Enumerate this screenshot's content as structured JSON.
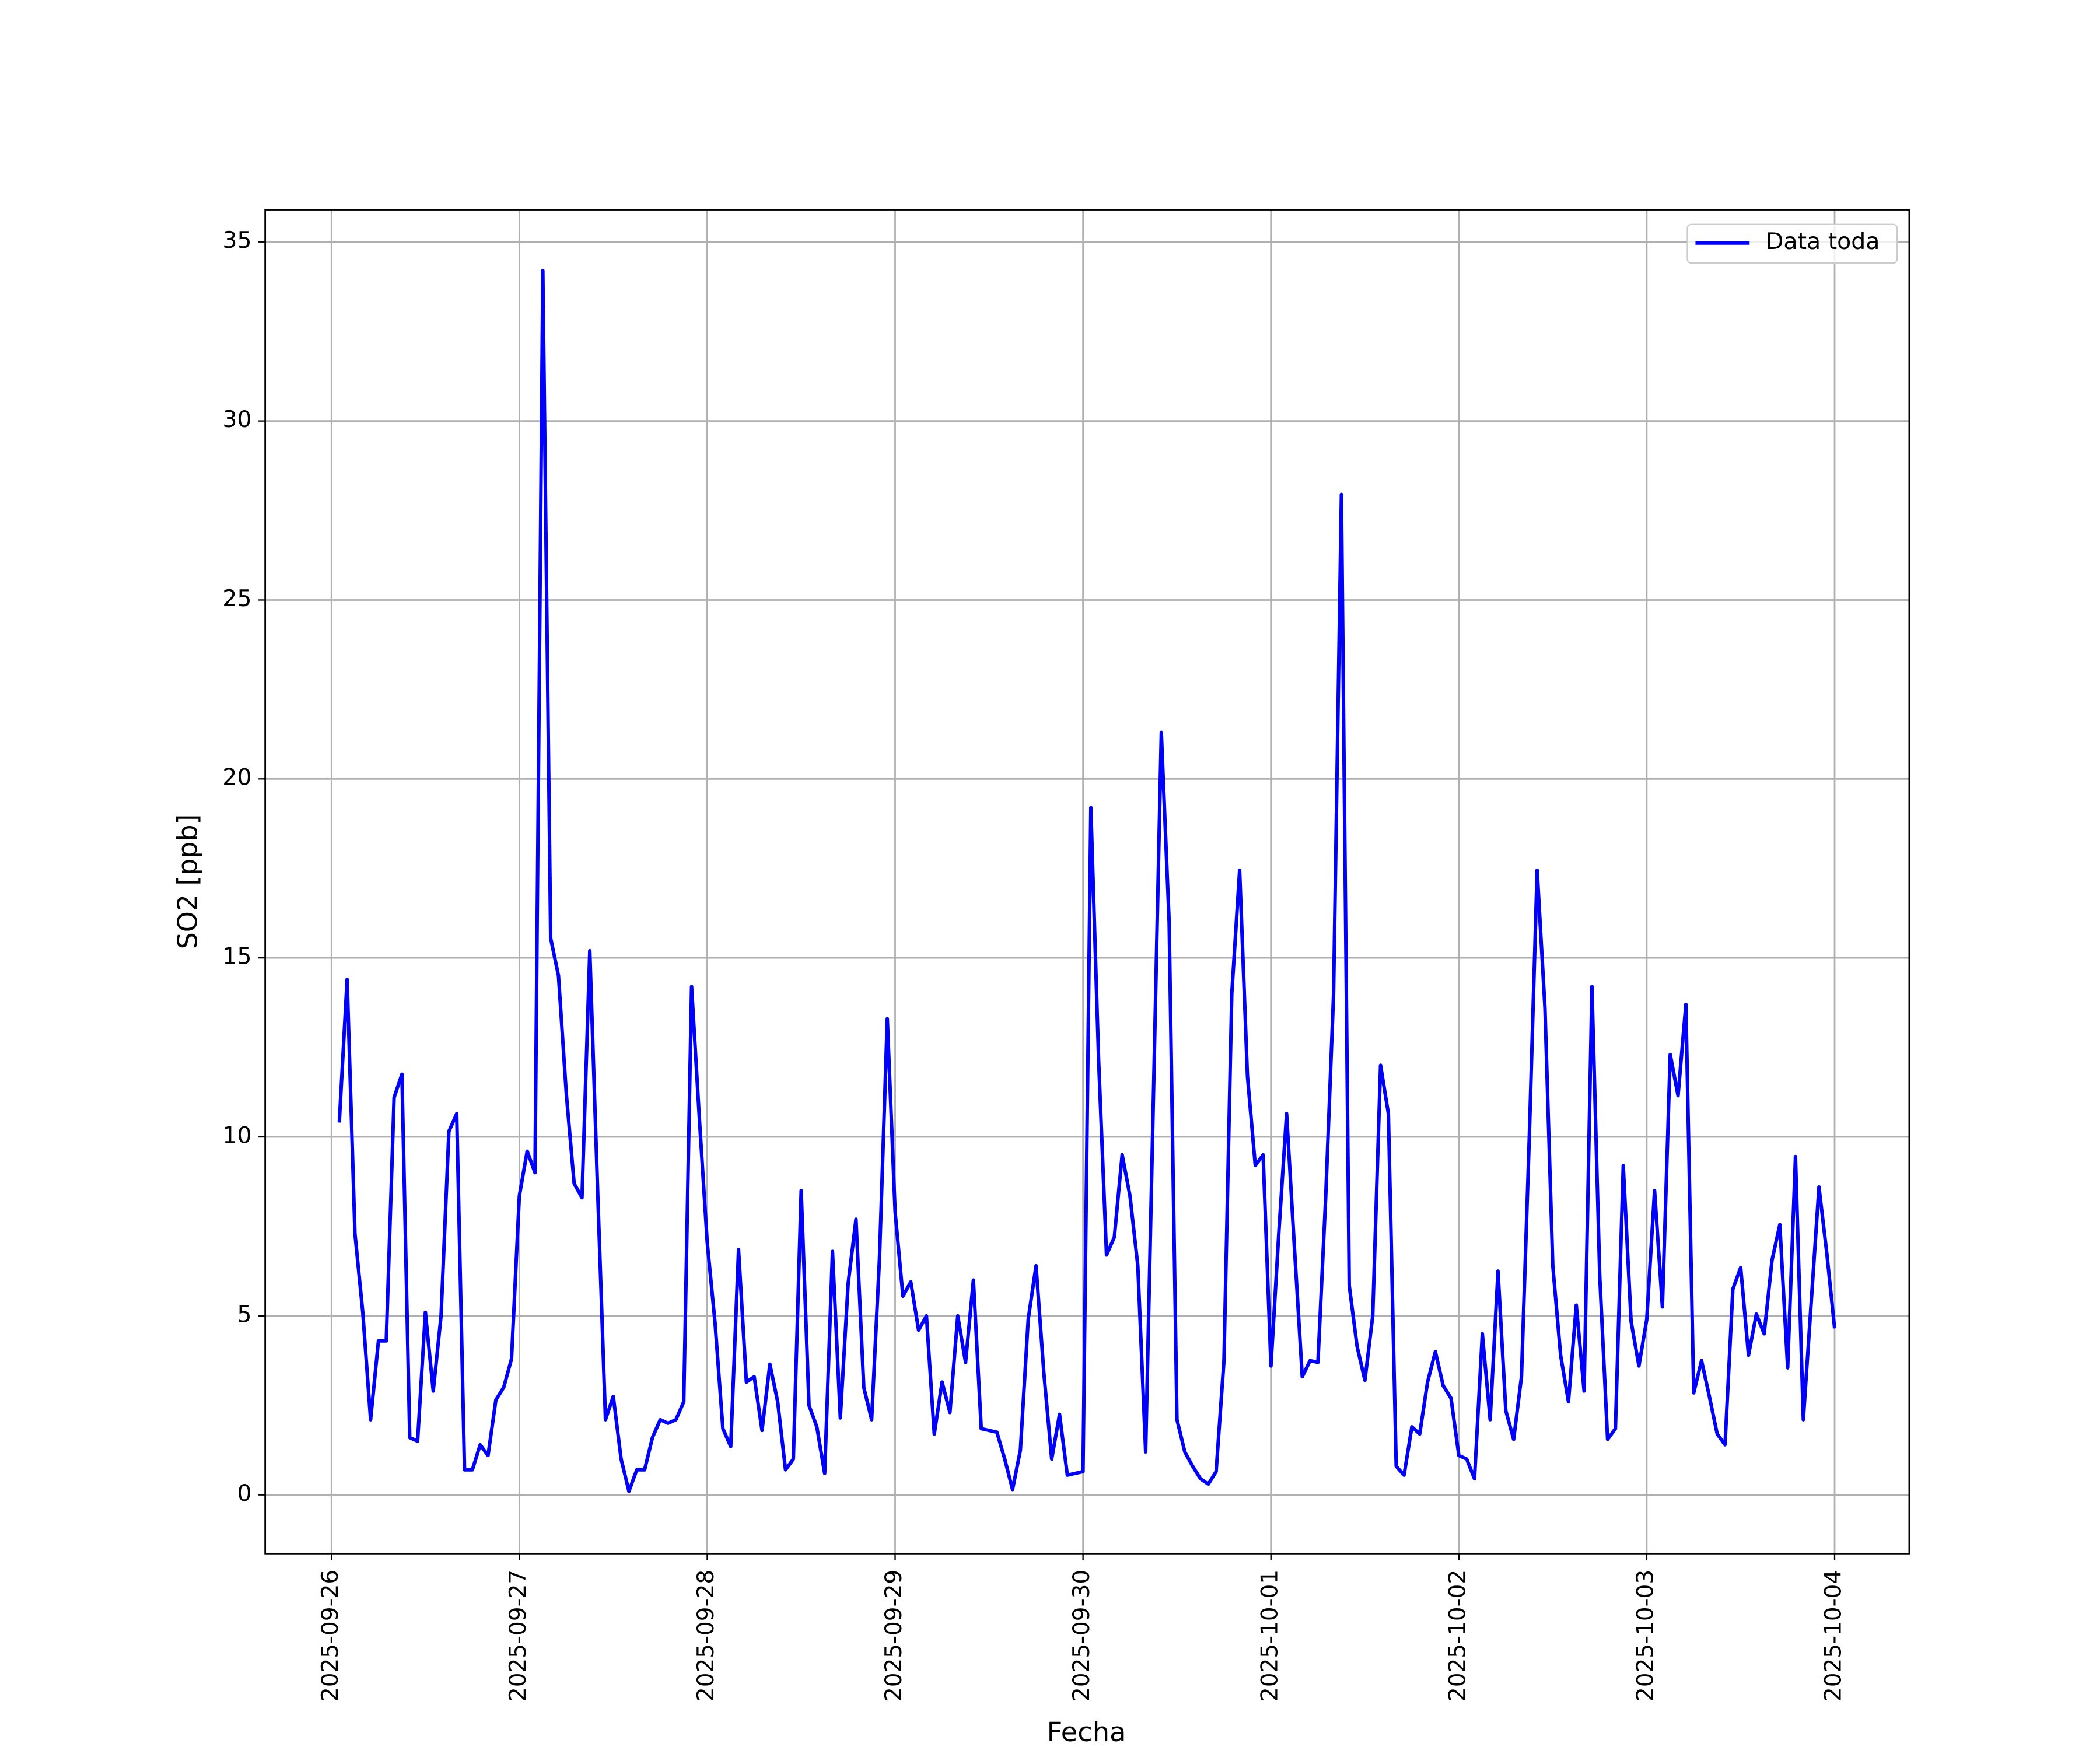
{
  "chart_data": {
    "type": "line",
    "xlabel": "Fecha",
    "ylabel": "SO2 [ppb]",
    "x": [
      "2025-09-26 01:00",
      "2025-09-26 02:00",
      "2025-09-26 03:00",
      "2025-09-26 04:00",
      "2025-09-26 05:00",
      "2025-09-26 06:00",
      "2025-09-26 07:00",
      "2025-09-26 08:00",
      "2025-09-26 09:00",
      "2025-09-26 10:00",
      "2025-09-26 11:00",
      "2025-09-26 12:00",
      "2025-09-26 13:00",
      "2025-09-26 14:00",
      "2025-09-26 15:00",
      "2025-09-26 16:00",
      "2025-09-26 17:00",
      "2025-09-26 18:00",
      "2025-09-26 19:00",
      "2025-09-26 20:00",
      "2025-09-26 21:00",
      "2025-09-26 22:00",
      "2025-09-26 23:00",
      "2025-09-27 00:00",
      "2025-09-27 01:00",
      "2025-09-27 02:00",
      "2025-09-27 03:00",
      "2025-09-27 04:00",
      "2025-09-27 05:00",
      "2025-09-27 06:00",
      "2025-09-27 07:00",
      "2025-09-27 08:00",
      "2025-09-27 09:00",
      "2025-09-27 10:00",
      "2025-09-27 11:00",
      "2025-09-27 12:00",
      "2025-09-27 13:00",
      "2025-09-27 14:00",
      "2025-09-27 15:00",
      "2025-09-27 16:00",
      "2025-09-27 17:00",
      "2025-09-27 18:00",
      "2025-09-27 19:00",
      "2025-09-27 20:00",
      "2025-09-27 21:00",
      "2025-09-27 22:00",
      "2025-09-27 23:00",
      "2025-09-28 00:00",
      "2025-09-28 01:00",
      "2025-09-28 02:00",
      "2025-09-28 03:00",
      "2025-09-28 04:00",
      "2025-09-28 05:00",
      "2025-09-28 06:00",
      "2025-09-28 07:00",
      "2025-09-28 08:00",
      "2025-09-28 09:00",
      "2025-09-28 10:00",
      "2025-09-28 11:00",
      "2025-09-28 12:00",
      "2025-09-28 13:00",
      "2025-09-28 14:00",
      "2025-09-28 15:00",
      "2025-09-28 16:00",
      "2025-09-28 17:00",
      "2025-09-28 18:00",
      "2025-09-28 19:00",
      "2025-09-28 20:00",
      "2025-09-28 21:00",
      "2025-09-28 22:00",
      "2025-09-28 23:00",
      "2025-09-29 00:00",
      "2025-09-29 01:00",
      "2025-09-29 02:00",
      "2025-09-29 03:00",
      "2025-09-29 04:00",
      "2025-09-29 05:00",
      "2025-09-29 06:00",
      "2025-09-29 07:00",
      "2025-09-29 08:00",
      "2025-09-29 09:00",
      "2025-09-29 10:00",
      "2025-09-29 11:00",
      "2025-09-29 12:00",
      "2025-09-29 13:00",
      "2025-09-29 14:00",
      "2025-09-29 15:00",
      "2025-09-29 16:00",
      "2025-09-29 17:00",
      "2025-09-29 18:00",
      "2025-09-29 19:00",
      "2025-09-29 20:00",
      "2025-09-29 21:00",
      "2025-09-29 22:00",
      "2025-09-29 23:00",
      "2025-09-30 00:00",
      "2025-09-30 01:00",
      "2025-09-30 02:00",
      "2025-09-30 03:00",
      "2025-09-30 04:00",
      "2025-09-30 05:00",
      "2025-09-30 06:00",
      "2025-09-30 07:00",
      "2025-09-30 08:00",
      "2025-09-30 09:00",
      "2025-09-30 10:00",
      "2025-09-30 11:00",
      "2025-09-30 12:00",
      "2025-09-30 13:00",
      "2025-09-30 14:00",
      "2025-09-30 15:00",
      "2025-09-30 16:00",
      "2025-09-30 17:00",
      "2025-09-30 18:00",
      "2025-09-30 19:00",
      "2025-09-30 20:00",
      "2025-09-30 21:00",
      "2025-09-30 22:00",
      "2025-09-30 23:00",
      "2025-10-01 00:00",
      "2025-10-01 01:00",
      "2025-10-01 02:00",
      "2025-10-01 03:00",
      "2025-10-01 04:00",
      "2025-10-01 05:00",
      "2025-10-01 06:00",
      "2025-10-01 07:00",
      "2025-10-01 08:00",
      "2025-10-01 09:00",
      "2025-10-01 10:00",
      "2025-10-01 11:00",
      "2025-10-01 12:00",
      "2025-10-01 13:00",
      "2025-10-01 14:00",
      "2025-10-01 15:00",
      "2025-10-01 16:00",
      "2025-10-01 17:00",
      "2025-10-01 18:00",
      "2025-10-01 19:00",
      "2025-10-01 20:00",
      "2025-10-01 21:00",
      "2025-10-01 22:00",
      "2025-10-01 23:00",
      "2025-10-02 00:00",
      "2025-10-02 01:00",
      "2025-10-02 02:00",
      "2025-10-02 03:00",
      "2025-10-02 04:00",
      "2025-10-02 05:00",
      "2025-10-02 06:00",
      "2025-10-02 07:00",
      "2025-10-02 08:00",
      "2025-10-02 09:00",
      "2025-10-02 10:00",
      "2025-10-02 11:00",
      "2025-10-02 12:00",
      "2025-10-02 13:00",
      "2025-10-02 14:00",
      "2025-10-02 15:00",
      "2025-10-02 16:00",
      "2025-10-02 17:00",
      "2025-10-02 18:00",
      "2025-10-02 19:00",
      "2025-10-02 20:00",
      "2025-10-02 21:00",
      "2025-10-02 22:00",
      "2025-10-02 23:00",
      "2025-10-03 00:00",
      "2025-10-03 01:00",
      "2025-10-03 02:00",
      "2025-10-03 03:00",
      "2025-10-03 04:00",
      "2025-10-03 05:00",
      "2025-10-03 06:00",
      "2025-10-03 07:00",
      "2025-10-03 08:00",
      "2025-10-03 09:00",
      "2025-10-03 10:00",
      "2025-10-03 11:00",
      "2025-10-03 12:00",
      "2025-10-03 13:00",
      "2025-10-03 14:00",
      "2025-10-03 15:00",
      "2025-10-03 16:00",
      "2025-10-03 17:00",
      "2025-10-03 18:00",
      "2025-10-03 19:00",
      "2025-10-03 20:00",
      "2025-10-03 21:00",
      "2025-10-03 22:00",
      "2025-10-03 23:00",
      "2025-10-04 00:00"
    ],
    "series": [
      {
        "name": "Data toda",
        "color": "#0000ff",
        "values": [
          10.4,
          14.4,
          7.3,
          5.1,
          2.1,
          4.3,
          4.3,
          11.1,
          11.75,
          1.6,
          1.5,
          5.1,
          2.9,
          5.0,
          10.15,
          10.65,
          0.7,
          0.7,
          1.4,
          1.1,
          2.65,
          3.0,
          3.8,
          8.35,
          9.6,
          9.0,
          34.2,
          15.55,
          14.5,
          11.2,
          8.7,
          8.3,
          15.2,
          8.5,
          2.1,
          2.75,
          1.0,
          0.1,
          0.7,
          0.7,
          1.6,
          2.1,
          2.0,
          2.1,
          2.6,
          14.2,
          10.5,
          7.05,
          4.8,
          1.85,
          1.35,
          6.85,
          3.15,
          3.3,
          1.8,
          3.65,
          2.6,
          0.7,
          1.0,
          8.5,
          2.5,
          1.9,
          0.6,
          6.8,
          2.15,
          5.9,
          7.7,
          3.0,
          2.1,
          6.6,
          13.3,
          7.9,
          5.55,
          5.95,
          4.6,
          5.0,
          1.7,
          3.15,
          2.3,
          5.0,
          3.7,
          6.0,
          1.85,
          1.8,
          1.75,
          1.0,
          0.15,
          1.25,
          4.9,
          6.4,
          3.4,
          1.0,
          2.25,
          0.55,
          0.6,
          0.65,
          19.2,
          12.1,
          6.7,
          7.2,
          9.5,
          8.35,
          6.4,
          1.2,
          11.2,
          21.3,
          16.0,
          2.1,
          1.2,
          0.8,
          0.45,
          0.3,
          0.65,
          3.75,
          14.0,
          17.45,
          11.7,
          9.2,
          9.5,
          3.6,
          7.3,
          10.65,
          6.9,
          3.3,
          3.75,
          3.7,
          8.35,
          14.0,
          27.95,
          5.85,
          4.15,
          3.2,
          5.0,
          12.0,
          10.65,
          0.8,
          0.55,
          1.9,
          1.7,
          3.15,
          4.0,
          3.05,
          2.7,
          1.1,
          1.0,
          0.45,
          4.5,
          2.1,
          6.25,
          2.35,
          1.55,
          3.3,
          10.0,
          17.45,
          13.6,
          6.4,
          3.9,
          2.6,
          5.3,
          2.9,
          14.2,
          6.1,
          1.55,
          1.85,
          9.2,
          4.85,
          3.6,
          4.9,
          8.5,
          5.25,
          12.3,
          11.15,
          13.7,
          2.85,
          3.75,
          2.75,
          1.7,
          1.4,
          5.75,
          6.35,
          3.9,
          5.05,
          4.5,
          6.55,
          7.55,
          3.55,
          9.45,
          2.1,
          5.35,
          8.6,
          6.75,
          4.65
        ]
      }
    ],
    "xlim": [
      "2025-09-25 15:32",
      "2025-10-04 09:32"
    ],
    "xticks": [
      "2025-09-26",
      "2025-09-27",
      "2025-09-28",
      "2025-09-29",
      "2025-09-30",
      "2025-10-01",
      "2025-10-02",
      "2025-10-03",
      "2025-10-04"
    ],
    "ylim": [
      -1.64,
      35.9
    ],
    "yticks": [
      0,
      5,
      10,
      15,
      20,
      25,
      30,
      35
    ],
    "grid": true,
    "legend": "upper right"
  }
}
